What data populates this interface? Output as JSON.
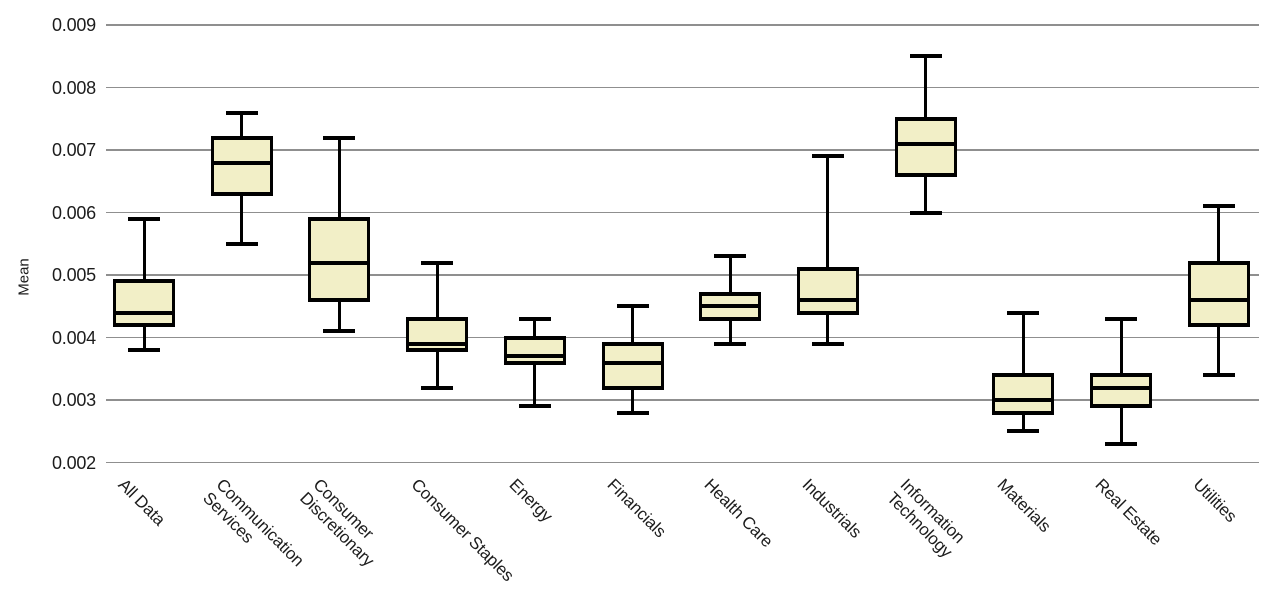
{
  "colors": {
    "box_fill": "#f2efc7",
    "box_border": "#000000",
    "median": "#000000",
    "whisker": "#000000",
    "gridline": "#8f8f8f",
    "text": "#1c1c1c"
  },
  "chart_data": {
    "type": "boxplot",
    "title": "",
    "xlabel": "",
    "ylabel": "Mean",
    "ylim": [
      0.002,
      0.009
    ],
    "grid": true,
    "yticks": [
      0.002,
      0.003,
      0.004,
      0.005,
      0.006,
      0.007,
      0.008,
      0.009
    ],
    "ytick_labels": [
      "0.002",
      "0.003",
      "0.004",
      "0.005",
      "0.006",
      "0.007",
      "0.008",
      "0.009"
    ],
    "categories": [
      "All Data",
      "Communication Services",
      "Consumer Discretionary",
      "Consumer Staples",
      "Energy",
      "Financials",
      "Health Care",
      "Industrials",
      "Information Technology",
      "Materials",
      "Real Estate",
      "Utilities"
    ],
    "boxes": [
      {
        "label": "All Data",
        "label_lines": [
          "All Data"
        ],
        "whisker_low": 0.0038,
        "q1": 0.0042,
        "median": 0.0044,
        "q3": 0.0049,
        "whisker_high": 0.0059
      },
      {
        "label": "Communication Services",
        "label_lines": [
          "Communication",
          "Services"
        ],
        "whisker_low": 0.0055,
        "q1": 0.0063,
        "median": 0.0068,
        "q3": 0.0072,
        "whisker_high": 0.0076
      },
      {
        "label": "Consumer Discretionary",
        "label_lines": [
          "Consumer",
          "Discretionary"
        ],
        "whisker_low": 0.0041,
        "q1": 0.0046,
        "median": 0.0052,
        "q3": 0.0059,
        "whisker_high": 0.0072
      },
      {
        "label": "Consumer Staples",
        "label_lines": [
          "Consumer Staples"
        ],
        "whisker_low": 0.0032,
        "q1": 0.0038,
        "median": 0.0039,
        "q3": 0.0043,
        "whisker_high": 0.0052
      },
      {
        "label": "Energy",
        "label_lines": [
          "Energy"
        ],
        "whisker_low": 0.0029,
        "q1": 0.0036,
        "median": 0.0037,
        "q3": 0.004,
        "whisker_high": 0.0043
      },
      {
        "label": "Financials",
        "label_lines": [
          "Financials"
        ],
        "whisker_low": 0.0028,
        "q1": 0.0032,
        "median": 0.0036,
        "q3": 0.0039,
        "whisker_high": 0.0045
      },
      {
        "label": "Health Care",
        "label_lines": [
          "Health Care"
        ],
        "whisker_low": 0.0039,
        "q1": 0.0043,
        "median": 0.0045,
        "q3": 0.0047,
        "whisker_high": 0.0053
      },
      {
        "label": "Industrials",
        "label_lines": [
          "Industrials"
        ],
        "whisker_low": 0.0039,
        "q1": 0.0044,
        "median": 0.0046,
        "q3": 0.0051,
        "whisker_high": 0.0069
      },
      {
        "label": "Information Technology",
        "label_lines": [
          "Information",
          "Technology"
        ],
        "whisker_low": 0.006,
        "q1": 0.0066,
        "median": 0.0071,
        "q3": 0.0075,
        "whisker_high": 0.0085
      },
      {
        "label": "Materials",
        "label_lines": [
          "Materials"
        ],
        "whisker_low": 0.0025,
        "q1": 0.0028,
        "median": 0.003,
        "q3": 0.0034,
        "whisker_high": 0.0044
      },
      {
        "label": "Real Estate",
        "label_lines": [
          "Real Estate"
        ],
        "whisker_low": 0.0023,
        "q1": 0.0029,
        "median": 0.0032,
        "q3": 0.0034,
        "whisker_high": 0.0043
      },
      {
        "label": "Utilities",
        "label_lines": [
          "Utilities"
        ],
        "whisker_low": 0.0034,
        "q1": 0.0042,
        "median": 0.0046,
        "q3": 0.0052,
        "whisker_high": 0.0061
      }
    ]
  }
}
